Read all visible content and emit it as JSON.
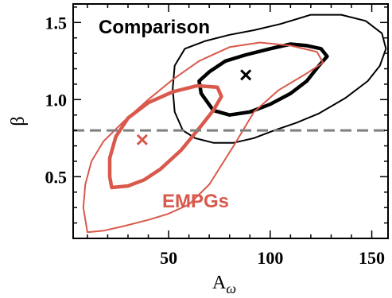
{
  "chart_data": {
    "type": "contour",
    "xlabel": "A",
    "xlabel_sub": "ω",
    "ylabel": "β",
    "xlim": [
      3,
      158
    ],
    "ylim": [
      0.1,
      1.62
    ],
    "xticks": [
      50,
      100,
      150
    ],
    "yticks": [
      0.5,
      1.0,
      1.5
    ],
    "xtick_labels": [
      "50",
      "100",
      "150"
    ],
    "ytick_labels": [
      "0.5",
      "1.0",
      "1.5"
    ],
    "minor_x_step": 10,
    "minor_y_step": 0.1,
    "reference_line": {
      "y": 0.8,
      "style": "dashed",
      "color": "#7f7f7f"
    },
    "series": [
      {
        "name": "Comparison",
        "color": "#000000",
        "best_fit": {
          "x": 88,
          "y": 1.16
        },
        "contours": [
          {
            "level": "inner",
            "points": [
              [
                66,
                1.04
              ],
              [
                72,
                0.93
              ],
              [
                80,
                0.9
              ],
              [
                90,
                0.92
              ],
              [
                100,
                0.97
              ],
              [
                110,
                1.04
              ],
              [
                118,
                1.12
              ],
              [
                124,
                1.22
              ],
              [
                128,
                1.28
              ],
              [
                125,
                1.33
              ],
              [
                118,
                1.35
              ],
              [
                110,
                1.36
              ],
              [
                100,
                1.33
              ],
              [
                88,
                1.29
              ],
              [
                78,
                1.25
              ],
              [
                70,
                1.18
              ],
              [
                65,
                1.12
              ]
            ]
          },
          {
            "level": "outer",
            "points": [
              [
                52,
                1.07
              ],
              [
                53,
                0.92
              ],
              [
                57,
                0.8
              ],
              [
                63,
                0.75
              ],
              [
                72,
                0.72
              ],
              [
                82,
                0.72
              ],
              [
                92,
                0.75
              ],
              [
                102,
                0.8
              ],
              [
                113,
                0.85
              ],
              [
                124,
                0.91
              ],
              [
                137,
                1.01
              ],
              [
                148,
                1.12
              ],
              [
                154,
                1.22
              ],
              [
                157,
                1.33
              ],
              [
                155,
                1.43
              ],
              [
                147,
                1.51
              ],
              [
                135,
                1.55
              ],
              [
                120,
                1.55
              ],
              [
                105,
                1.49
              ],
              [
                92,
                1.45
              ],
              [
                80,
                1.42
              ],
              [
                68,
                1.38
              ],
              [
                58,
                1.33
              ],
              [
                53,
                1.22
              ]
            ]
          }
        ]
      },
      {
        "name": "EMPGs",
        "color": "#d9594c",
        "best_fit": {
          "x": 37,
          "y": 0.74
        },
        "contours": [
          {
            "level": "inner",
            "points": [
              [
                22,
                0.43
              ],
              [
                30,
                0.44
              ],
              [
                38,
                0.48
              ],
              [
                46,
                0.55
              ],
              [
                56,
                0.67
              ],
              [
                66,
                0.83
              ],
              [
                72,
                0.93
              ],
              [
                76,
                1.02
              ],
              [
                74,
                1.08
              ],
              [
                64,
                1.09
              ],
              [
                52,
                1.05
              ],
              [
                40,
                0.98
              ],
              [
                30,
                0.88
              ],
              [
                24,
                0.76
              ],
              [
                21,
                0.62
              ],
              [
                21,
                0.5
              ]
            ]
          },
          {
            "level": "outer",
            "points": [
              [
                10,
                0.14
              ],
              [
                18,
                0.15
              ],
              [
                28,
                0.18
              ],
              [
                40,
                0.22
              ],
              [
                50,
                0.26
              ],
              [
                60,
                0.32
              ],
              [
                70,
                0.45
              ],
              [
                82,
                0.7
              ],
              [
                92,
                0.92
              ],
              [
                104,
                1.06
              ],
              [
                118,
                1.17
              ],
              [
                126,
                1.24
              ],
              [
                123,
                1.31
              ],
              [
                110,
                1.35
              ],
              [
                95,
                1.37
              ],
              [
                80,
                1.34
              ],
              [
                65,
                1.25
              ],
              [
                52,
                1.13
              ],
              [
                40,
                1.0
              ],
              [
                28,
                0.86
              ],
              [
                18,
                0.73
              ],
              [
                12,
                0.6
              ],
              [
                9,
                0.45
              ],
              [
                8,
                0.3
              ]
            ]
          }
        ]
      }
    ]
  }
}
